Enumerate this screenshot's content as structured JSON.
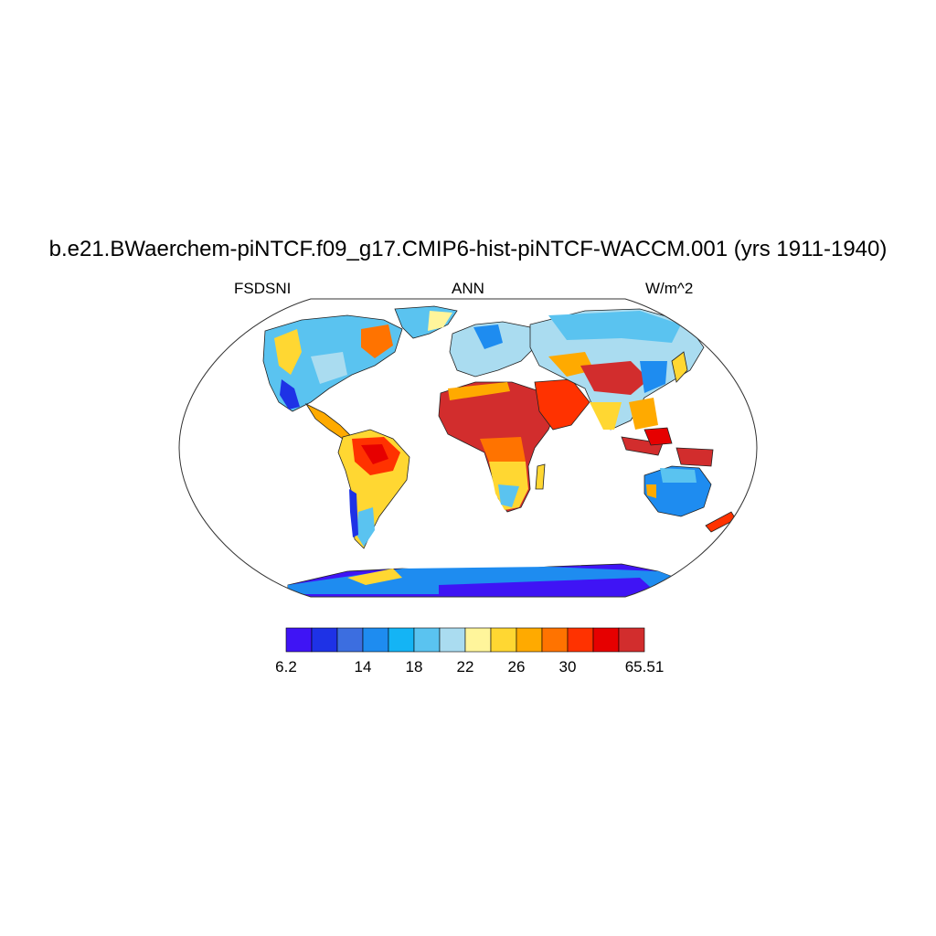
{
  "title": "b.e21.BWaerchem-piNTCF.f09_g17.CMIP6-hist-piNTCF-WACCM.001 (yrs 1911-1940)",
  "left_label": "FSDSNI",
  "center_label": "ANN",
  "right_label": "W/m^2",
  "colorbar": {
    "colors": [
      "#3f14f5",
      "#1e32e6",
      "#3c6ee0",
      "#1e8cf0",
      "#14b4f5",
      "#5ac3f0",
      "#aadcf0",
      "#fff59b",
      "#ffd732",
      "#ffaa00",
      "#ff7300",
      "#ff3200",
      "#e60000",
      "#d22d2d"
    ],
    "tick_labels": [
      "6.2",
      "14",
      "18",
      "22",
      "26",
      "30",
      "65.51"
    ]
  },
  "map": {
    "projection": "robinson",
    "variable": "FSDSNI",
    "units": "W/m^2",
    "season": "ANN",
    "ocean_fill": "white (masked)",
    "regions": [
      {
        "name": "North Africa / Sahara",
        "level": "high",
        "approx_value": 34
      },
      {
        "name": "Arabian Peninsula",
        "level": "high",
        "approx_value": 32
      },
      {
        "name": "Tibetan Plateau",
        "level": "high",
        "approx_value": 34
      },
      {
        "name": "Maritime Continent",
        "level": "high",
        "approx_value": 34
      },
      {
        "name": "Amazon",
        "level": "high",
        "approx_value": 30
      },
      {
        "name": "Australia",
        "level": "low-moderate",
        "approx_value": 17
      },
      {
        "name": "Siberia",
        "level": "low-moderate",
        "approx_value": 19
      },
      {
        "name": "Antarctica",
        "level": "lowest",
        "approx_value": 8
      }
    ]
  }
}
